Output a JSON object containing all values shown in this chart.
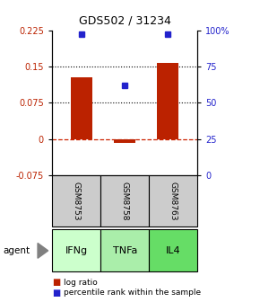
{
  "title": "GDS502 / 31234",
  "samples": [
    "GSM8753",
    "GSM8758",
    "GSM8763"
  ],
  "agents": [
    "IFNg",
    "TNFa",
    "IL4"
  ],
  "log_ratios": [
    0.127,
    -0.008,
    0.158
  ],
  "percentile_ranks": [
    97,
    62,
    97
  ],
  "ylim_left": [
    -0.075,
    0.225
  ],
  "ylim_right": [
    0,
    100
  ],
  "yticks_left": [
    -0.075,
    0,
    0.075,
    0.15,
    0.225
  ],
  "ytick_labels_left": [
    "-0.075",
    "0",
    "0.075",
    "0.15",
    "0.225"
  ],
  "yticks_right": [
    0,
    25,
    50,
    75,
    100
  ],
  "ytick_labels_right": [
    "0",
    "25",
    "50",
    "75",
    "100%"
  ],
  "hlines": [
    0.075,
    0.15
  ],
  "bar_color": "#bb2200",
  "dot_color": "#2222cc",
  "agent_color_light": "#ccffcc",
  "agent_color_medium": "#aaeeaa",
  "agent_color_dark": "#66dd66",
  "sample_box_color": "#cccccc",
  "zero_line_color": "#cc2200",
  "bg_color": "#ffffff",
  "bar_width": 0.5
}
